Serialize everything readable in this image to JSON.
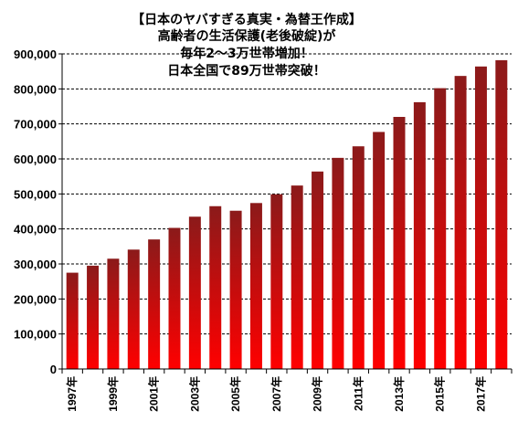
{
  "chart_data": {
    "type": "bar",
    "title_lines": [
      "【日本のヤバすぎる真実・為替王作成】",
      "高齢者の生活保護(老後破綻)が",
      "毎年2～3万世帯増加！",
      "日本全国で89万世帯突破！"
    ],
    "categories": [
      "1997年",
      "1998年",
      "1999年",
      "2000年",
      "2001年",
      "2002年",
      "2003年",
      "2004年",
      "2005年",
      "2006年",
      "2007年",
      "2008年",
      "2009年",
      "2010年",
      "2011年",
      "2012年",
      "2013年",
      "2014年",
      "2015年",
      "2016年",
      "2017年",
      "2018年"
    ],
    "x_tick_labels": [
      "1997年",
      "",
      "1999年",
      "",
      "2001年",
      "",
      "2003年",
      "",
      "2005年",
      "",
      "2007年",
      "",
      "2009年",
      "",
      "2011年",
      "",
      "2013年",
      "",
      "2015年",
      "",
      "2017年",
      ""
    ],
    "values": [
      275000,
      295000,
      315000,
      341000,
      370000,
      403000,
      435000,
      465000,
      452000,
      474000,
      499000,
      524000,
      564000,
      603000,
      636000,
      677000,
      720000,
      762000,
      802000,
      837000,
      864000,
      882000
    ],
    "y_ticks": [
      0,
      100000,
      200000,
      300000,
      400000,
      500000,
      600000,
      700000,
      800000,
      900000
    ],
    "y_tick_labels": [
      "0",
      "100,000",
      "200,000",
      "300,000",
      "400,000",
      "500,000",
      "600,000",
      "700,000",
      "800,000",
      "900,000"
    ],
    "ylim": [
      0,
      900000
    ],
    "grid": "horizontal-dashed",
    "bar_color_top": "#8b1a1a",
    "bar_color_bottom": "#ff0000"
  }
}
